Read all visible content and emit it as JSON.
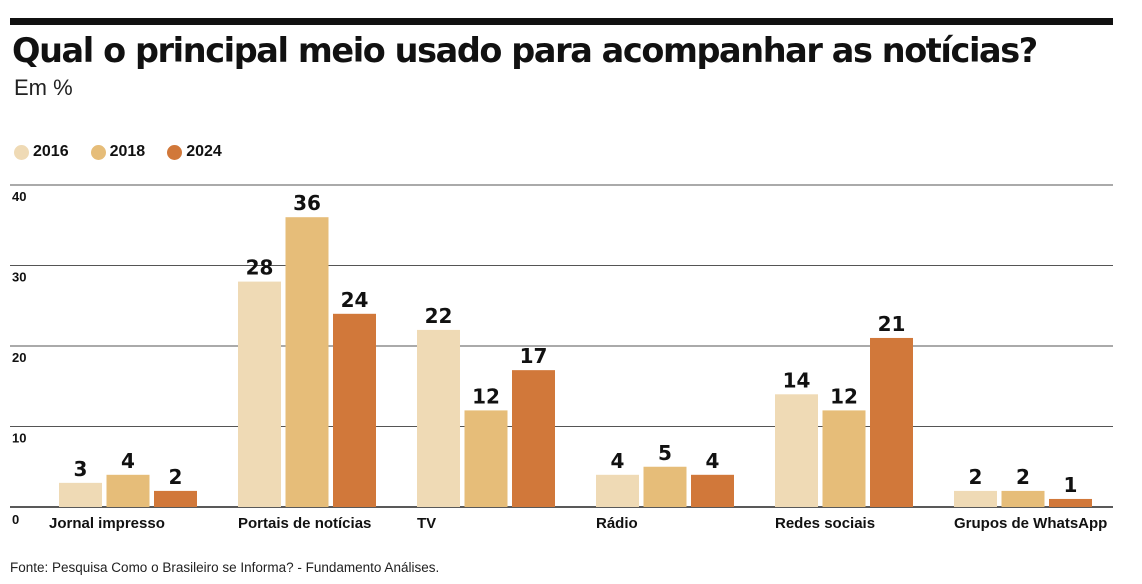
{
  "title": "Qual o principal meio usado para acompanhar as notícias?",
  "subtitle": "Em %",
  "source": "Fonte: Pesquisa Como o Brasileiro se Informa? - Fundamento Análises.",
  "legend": [
    {
      "label": "2016",
      "color": "#efdab5"
    },
    {
      "label": "2018",
      "color": "#e6bd79"
    },
    {
      "label": "2024",
      "color": "#d1783a"
    }
  ],
  "chart_data": {
    "type": "bar",
    "categories": [
      "Jornal impresso",
      "Portais de notícias",
      "TV",
      "Rádio",
      "Redes sociais",
      "Grupos de WhatsApp"
    ],
    "series": [
      {
        "name": "2016",
        "values": [
          3,
          28,
          22,
          4,
          14,
          2
        ]
      },
      {
        "name": "2018",
        "values": [
          4,
          36,
          12,
          5,
          12,
          2
        ]
      },
      {
        "name": "2024",
        "values": [
          2,
          24,
          17,
          4,
          21,
          1
        ]
      }
    ],
    "yticks": [
      "0",
      "10",
      "20",
      "30",
      "40"
    ],
    "ylim": [
      0,
      40
    ],
    "grid": true,
    "legend_position": "top-left"
  }
}
